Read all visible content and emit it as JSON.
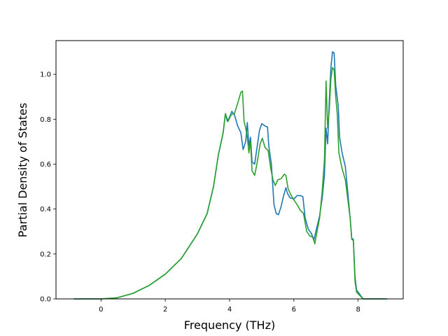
{
  "chart_data": {
    "type": "line",
    "title": "",
    "xlabel": "Frequency (THz)",
    "ylabel": "Partial Density of States",
    "xlim": [
      -1.4,
      9.4
    ],
    "ylim": [
      0.0,
      1.15
    ],
    "xticks": [
      0,
      2,
      4,
      6,
      8
    ],
    "yticks": [
      0.0,
      0.2,
      0.4,
      0.6,
      0.8,
      1.0
    ],
    "xtick_labels": [
      "0",
      "2",
      "4",
      "6",
      "8"
    ],
    "ytick_labels": [
      "0.0",
      "0.2",
      "0.4",
      "0.6",
      "0.8",
      "1.0"
    ],
    "grid": false,
    "legend": "none",
    "series": [
      {
        "color": "#1f77b4",
        "points": [
          [
            -0.85,
            0.0
          ],
          [
            0.0,
            0.0
          ],
          [
            0.5,
            0.005
          ],
          [
            1.0,
            0.025
          ],
          [
            1.5,
            0.06
          ],
          [
            2.0,
            0.11
          ],
          [
            2.5,
            0.18
          ],
          [
            3.0,
            0.29
          ],
          [
            3.3,
            0.38
          ],
          [
            3.5,
            0.5
          ],
          [
            3.65,
            0.64
          ],
          [
            3.8,
            0.74
          ],
          [
            3.87,
            0.825
          ],
          [
            3.93,
            0.79
          ],
          [
            4.0,
            0.81
          ],
          [
            4.07,
            0.835
          ],
          [
            4.15,
            0.82
          ],
          [
            4.25,
            0.77
          ],
          [
            4.35,
            0.74
          ],
          [
            4.42,
            0.665
          ],
          [
            4.5,
            0.7
          ],
          [
            4.55,
            0.785
          ],
          [
            4.6,
            0.68
          ],
          [
            4.65,
            0.72
          ],
          [
            4.7,
            0.61
          ],
          [
            4.78,
            0.6
          ],
          [
            4.85,
            0.67
          ],
          [
            4.93,
            0.75
          ],
          [
            5.0,
            0.78
          ],
          [
            5.1,
            0.77
          ],
          [
            5.18,
            0.765
          ],
          [
            5.22,
            0.68
          ],
          [
            5.3,
            0.6
          ],
          [
            5.38,
            0.42
          ],
          [
            5.45,
            0.38
          ],
          [
            5.52,
            0.375
          ],
          [
            5.6,
            0.41
          ],
          [
            5.68,
            0.46
          ],
          [
            5.75,
            0.495
          ],
          [
            5.8,
            0.47
          ],
          [
            5.88,
            0.45
          ],
          [
            6.0,
            0.445
          ],
          [
            6.1,
            0.46
          ],
          [
            6.2,
            0.46
          ],
          [
            6.28,
            0.455
          ],
          [
            6.35,
            0.36
          ],
          [
            6.45,
            0.31
          ],
          [
            6.55,
            0.29
          ],
          [
            6.62,
            0.26
          ],
          [
            6.7,
            0.31
          ],
          [
            6.8,
            0.37
          ],
          [
            6.88,
            0.45
          ],
          [
            6.95,
            0.55
          ],
          [
            7.0,
            0.76
          ],
          [
            7.05,
            0.69
          ],
          [
            7.1,
            0.88
          ],
          [
            7.15,
            1.03
          ],
          [
            7.2,
            1.1
          ],
          [
            7.25,
            1.095
          ],
          [
            7.3,
            0.95
          ],
          [
            7.38,
            0.86
          ],
          [
            7.42,
            0.72
          ],
          [
            7.5,
            0.65
          ],
          [
            7.6,
            0.59
          ],
          [
            7.68,
            0.47
          ],
          [
            7.75,
            0.36
          ],
          [
            7.8,
            0.27
          ],
          [
            7.85,
            0.265
          ],
          [
            7.9,
            0.1
          ],
          [
            7.95,
            0.04
          ],
          [
            8.05,
            0.02
          ],
          [
            8.15,
            0.0
          ],
          [
            8.9,
            0.0
          ]
        ]
      },
      {
        "color": "#2ca02c",
        "points": [
          [
            -0.85,
            0.0
          ],
          [
            0.0,
            0.0
          ],
          [
            0.5,
            0.005
          ],
          [
            1.0,
            0.025
          ],
          [
            1.5,
            0.06
          ],
          [
            2.0,
            0.11
          ],
          [
            2.5,
            0.18
          ],
          [
            3.0,
            0.29
          ],
          [
            3.3,
            0.38
          ],
          [
            3.5,
            0.5
          ],
          [
            3.65,
            0.64
          ],
          [
            3.8,
            0.74
          ],
          [
            3.87,
            0.825
          ],
          [
            3.95,
            0.79
          ],
          [
            4.05,
            0.82
          ],
          [
            4.15,
            0.825
          ],
          [
            4.25,
            0.87
          ],
          [
            4.35,
            0.92
          ],
          [
            4.4,
            0.925
          ],
          [
            4.45,
            0.79
          ],
          [
            4.5,
            0.76
          ],
          [
            4.55,
            0.72
          ],
          [
            4.6,
            0.65
          ],
          [
            4.65,
            0.7
          ],
          [
            4.7,
            0.57
          ],
          [
            4.78,
            0.55
          ],
          [
            4.85,
            0.6
          ],
          [
            4.95,
            0.69
          ],
          [
            5.02,
            0.715
          ],
          [
            5.1,
            0.675
          ],
          [
            5.2,
            0.66
          ],
          [
            5.28,
            0.58
          ],
          [
            5.35,
            0.53
          ],
          [
            5.42,
            0.505
          ],
          [
            5.5,
            0.53
          ],
          [
            5.6,
            0.535
          ],
          [
            5.7,
            0.555
          ],
          [
            5.75,
            0.55
          ],
          [
            5.82,
            0.49
          ],
          [
            5.9,
            0.465
          ],
          [
            6.0,
            0.44
          ],
          [
            6.1,
            0.42
          ],
          [
            6.2,
            0.395
          ],
          [
            6.3,
            0.38
          ],
          [
            6.4,
            0.3
          ],
          [
            6.5,
            0.28
          ],
          [
            6.6,
            0.275
          ],
          [
            6.65,
            0.245
          ],
          [
            6.72,
            0.3
          ],
          [
            6.8,
            0.36
          ],
          [
            6.88,
            0.48
          ],
          [
            6.95,
            0.62
          ],
          [
            7.0,
            0.97
          ],
          [
            7.05,
            0.76
          ],
          [
            7.1,
            0.84
          ],
          [
            7.15,
            0.98
          ],
          [
            7.2,
            1.03
          ],
          [
            7.25,
            1.02
          ],
          [
            7.3,
            0.9
          ],
          [
            7.35,
            0.82
          ],
          [
            7.4,
            0.65
          ],
          [
            7.5,
            0.58
          ],
          [
            7.6,
            0.53
          ],
          [
            7.68,
            0.44
          ],
          [
            7.75,
            0.36
          ],
          [
            7.8,
            0.265
          ],
          [
            7.85,
            0.26
          ],
          [
            7.9,
            0.08
          ],
          [
            7.95,
            0.03
          ],
          [
            8.05,
            0.015
          ],
          [
            8.15,
            0.0
          ],
          [
            8.9,
            0.0
          ]
        ]
      }
    ]
  }
}
